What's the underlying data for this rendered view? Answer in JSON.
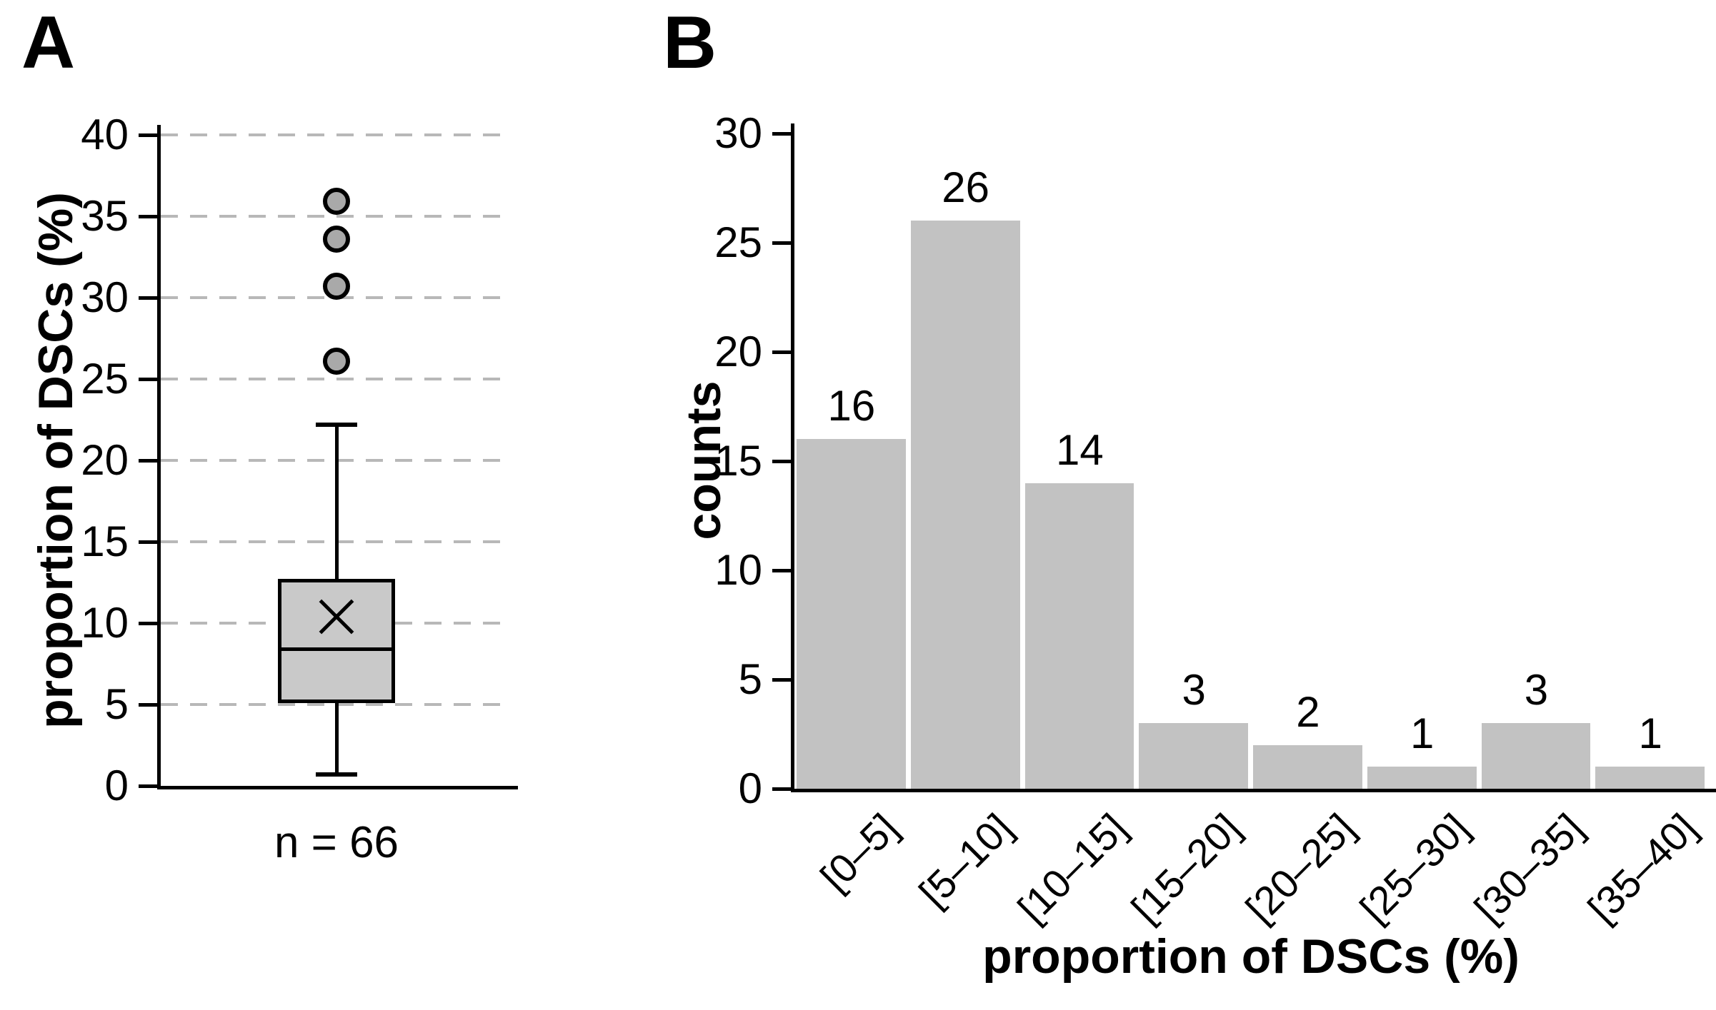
{
  "figure": {
    "panels": [
      {
        "letter": "A"
      },
      {
        "letter": "B"
      }
    ]
  },
  "colors": {
    "bar_fill": "#c2c2c2",
    "box_fill": "#c9c9c9",
    "outlier_fill": "#a9a9a9",
    "grid": "#b8b8b8",
    "axis": "#000000",
    "text": "#000000"
  },
  "chart_data": [
    {
      "panel": "A",
      "type": "boxplot",
      "title": "",
      "xlabel": "",
      "ylabel": "proportion of DSCs (%)",
      "ylim": [
        0,
        40
      ],
      "yticks": [
        0,
        5,
        10,
        15,
        20,
        25,
        30,
        35,
        40
      ],
      "grid": "horizontal dashed at yticks 5-40",
      "legend": "none",
      "group_label": "n = 66",
      "box": {
        "whisker_low": 0.7,
        "q1": 5.1,
        "median": 8.4,
        "q3": 12.7,
        "whisker_high": 22.2,
        "mean": 10.4,
        "outliers": [
          26.1,
          30.7,
          33.6,
          35.9
        ]
      }
    },
    {
      "panel": "B",
      "type": "bar",
      "title": "",
      "xlabel": "proportion of DSCs (%)",
      "ylabel": "counts",
      "ylim": [
        0,
        30
      ],
      "yticks": [
        0,
        5,
        10,
        15,
        20,
        25,
        30
      ],
      "grid": "off",
      "legend": "none",
      "categories": [
        "[0–5]",
        "[5–10]",
        "[10–15]",
        "[15–20]",
        "[20–25]",
        "[25–30]",
        "[30–35]",
        "[35–40]"
      ],
      "values": [
        16,
        26,
        14,
        3,
        2,
        1,
        3,
        1
      ]
    }
  ]
}
